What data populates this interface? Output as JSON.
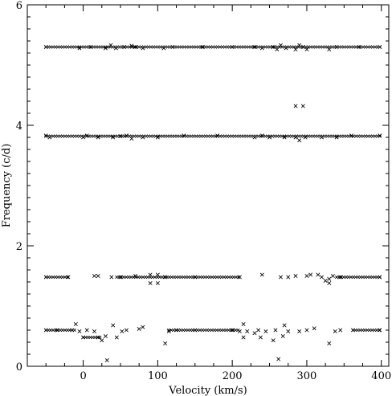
{
  "chart_data": {
    "type": "scatter",
    "title": "",
    "xlabel": "Velocity (km/s)",
    "ylabel": "Frequency (c/d)",
    "xlim": [
      -75,
      410
    ],
    "ylim": [
      0,
      6
    ],
    "x_ticks": [
      0,
      100,
      200,
      300,
      400
    ],
    "y_ticks": [
      0,
      2,
      4,
      6
    ],
    "grid": false,
    "legend": "none",
    "marker": "x",
    "series": [
      {
        "name": "",
        "points": [
          [
            -50,
            5.3
          ],
          [
            -5,
            5.28
          ],
          [
            10,
            5.3
          ],
          [
            30,
            5.28
          ],
          [
            37,
            5.33
          ],
          [
            44,
            5.28
          ],
          [
            55,
            5.3
          ],
          [
            65,
            5.32
          ],
          [
            70,
            5.3
          ],
          [
            80,
            5.28
          ],
          [
            108,
            5.28
          ],
          [
            120,
            5.3
          ],
          [
            160,
            5.3
          ],
          [
            200,
            5.3
          ],
          [
            230,
            5.3
          ],
          [
            240,
            5.28
          ],
          [
            255,
            5.3
          ],
          [
            260,
            5.26
          ],
          [
            265,
            5.33
          ],
          [
            272,
            5.28
          ],
          [
            285,
            5.26
          ],
          [
            290,
            5.33
          ],
          [
            295,
            5.3
          ],
          [
            300,
            5.26
          ],
          [
            330,
            5.26
          ],
          [
            340,
            5.3
          ],
          [
            370,
            5.3
          ],
          [
            398,
            5.3
          ],
          [
            285,
            4.32
          ],
          [
            295,
            4.32
          ],
          [
            -50,
            3.83
          ],
          [
            -45,
            3.8
          ],
          [
            0,
            3.8
          ],
          [
            5,
            3.83
          ],
          [
            20,
            3.8
          ],
          [
            40,
            3.8
          ],
          [
            50,
            3.82
          ],
          [
            58,
            3.83
          ],
          [
            65,
            3.78
          ],
          [
            80,
            3.8
          ],
          [
            100,
            3.8
          ],
          [
            135,
            3.83
          ],
          [
            180,
            3.83
          ],
          [
            230,
            3.8
          ],
          [
            240,
            3.83
          ],
          [
            250,
            3.8
          ],
          [
            270,
            3.8
          ],
          [
            285,
            3.8
          ],
          [
            290,
            3.75
          ],
          [
            298,
            3.8
          ],
          [
            320,
            3.8
          ],
          [
            340,
            3.8
          ],
          [
            360,
            3.83
          ],
          [
            398,
            3.83
          ],
          [
            -50,
            1.48
          ],
          [
            -20,
            1.48
          ],
          [
            15,
            1.5
          ],
          [
            20,
            1.5
          ],
          [
            38,
            1.48
          ],
          [
            50,
            1.48
          ],
          [
            70,
            1.5
          ],
          [
            90,
            1.52
          ],
          [
            90,
            1.38
          ],
          [
            100,
            1.52
          ],
          [
            100,
            1.38
          ],
          [
            110,
            1.48
          ],
          [
            150,
            1.48
          ],
          [
            210,
            1.48
          ],
          [
            240,
            1.52
          ],
          [
            265,
            1.48
          ],
          [
            275,
            1.48
          ],
          [
            285,
            1.5
          ],
          [
            300,
            1.5
          ],
          [
            305,
            1.52
          ],
          [
            315,
            1.52
          ],
          [
            320,
            1.48
          ],
          [
            330,
            1.45
          ],
          [
            335,
            1.5
          ],
          [
            345,
            1.48
          ],
          [
            398,
            1.48
          ],
          [
            -50,
            0.6
          ],
          [
            -35,
            0.6
          ],
          [
            -15,
            0.6
          ],
          [
            -10,
            0.7
          ],
          [
            -5,
            0.58
          ],
          [
            0,
            0.48
          ],
          [
            5,
            0.6
          ],
          [
            15,
            0.58
          ],
          [
            20,
            0.48
          ],
          [
            25,
            0.43
          ],
          [
            30,
            0.5
          ],
          [
            40,
            0.68
          ],
          [
            45,
            0.48
          ],
          [
            52,
            0.58
          ],
          [
            58,
            0.6
          ],
          [
            75,
            0.62
          ],
          [
            80,
            0.65
          ],
          [
            110,
            0.38
          ],
          [
            115,
            0.58
          ],
          [
            125,
            0.6
          ],
          [
            150,
            0.6
          ],
          [
            200,
            0.6
          ],
          [
            210,
            0.58
          ],
          [
            215,
            0.7
          ],
          [
            215,
            0.48
          ],
          [
            220,
            0.58
          ],
          [
            230,
            0.55
          ],
          [
            235,
            0.6
          ],
          [
            238,
            0.48
          ],
          [
            245,
            0.58
          ],
          [
            255,
            0.43
          ],
          [
            258,
            0.6
          ],
          [
            262,
            0.12
          ],
          [
            268,
            0.5
          ],
          [
            270,
            0.68
          ],
          [
            275,
            0.58
          ],
          [
            290,
            0.58
          ],
          [
            300,
            0.6
          ],
          [
            310,
            0.63
          ],
          [
            330,
            0.38
          ],
          [
            338,
            0.58
          ],
          [
            345,
            0.6
          ],
          [
            362,
            0.6
          ],
          [
            398,
            0.6
          ],
          [
            32,
            0.1
          ],
          [
            330,
            1.38
          ],
          [
            325,
            1.42
          ]
        ]
      }
    ]
  }
}
